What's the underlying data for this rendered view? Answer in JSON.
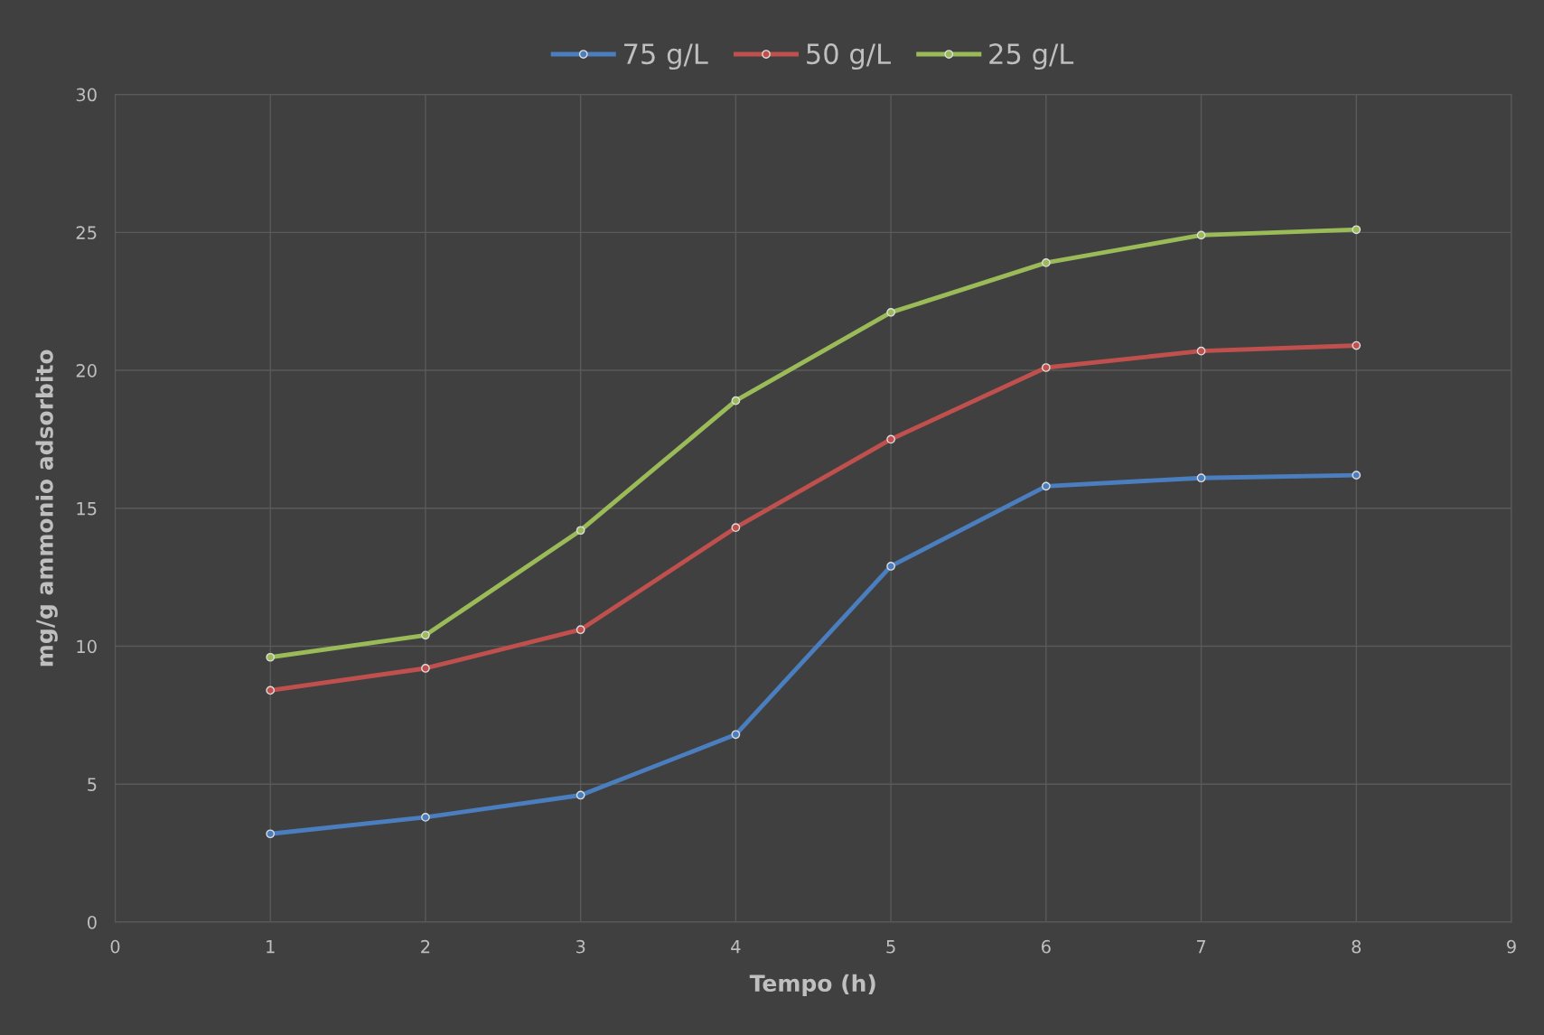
{
  "chart_data": {
    "type": "line",
    "xlabel": "Tempo (h)",
    "ylabel": "mg/g ammonio adsorbito",
    "x": [
      1,
      2,
      3,
      4,
      5,
      6,
      7,
      8
    ],
    "series": [
      {
        "name": "75 g/L",
        "color": "#4a7ebf",
        "values": [
          3.2,
          3.8,
          4.6,
          6.8,
          12.9,
          15.8,
          16.1,
          16.2
        ]
      },
      {
        "name": "50 g/L",
        "color": "#c0504d",
        "values": [
          8.4,
          9.2,
          10.6,
          14.3,
          17.5,
          20.1,
          20.7,
          20.9
        ]
      },
      {
        "name": "25 g/L",
        "color": "#9bbb59",
        "values": [
          9.6,
          10.4,
          14.2,
          18.9,
          22.1,
          23.9,
          24.9,
          25.1
        ]
      }
    ],
    "xlim": [
      0,
      9
    ],
    "xticks": [
      0,
      1,
      2,
      3,
      4,
      5,
      6,
      7,
      8,
      9
    ],
    "ylim": [
      0,
      30
    ],
    "yticks": [
      0,
      5,
      10,
      15,
      20,
      25,
      30
    ],
    "grid": true,
    "legend": "top",
    "marker": "circle",
    "line_style": "solid"
  }
}
